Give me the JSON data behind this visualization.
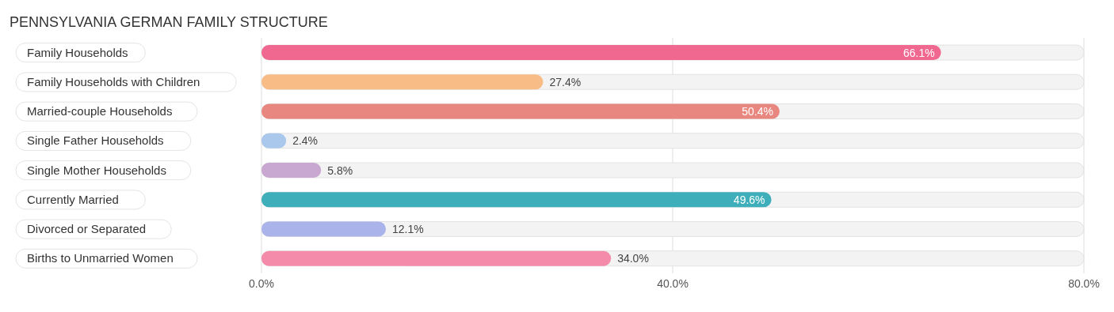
{
  "chart_data": {
    "type": "bar",
    "orientation": "horizontal",
    "title": "PENNSYLVANIA GERMAN FAMILY STRUCTURE",
    "categories": [
      "Family Households",
      "Family Households with Children",
      "Married-couple Households",
      "Single Father Households",
      "Single Mother Households",
      "Currently Married",
      "Divorced or Separated",
      "Births to Unmarried Women"
    ],
    "values": [
      66.1,
      27.4,
      50.4,
      2.4,
      5.8,
      49.6,
      12.1,
      34.0
    ],
    "colors": [
      "#f06890",
      "#f8bd87",
      "#e8877f",
      "#a9c8ec",
      "#c8a8d0",
      "#3eafba",
      "#aab3ea",
      "#f48bab"
    ],
    "value_labels": [
      "66.1%",
      "27.4%",
      "50.4%",
      "2.4%",
      "5.8%",
      "49.6%",
      "12.1%",
      "34.0%"
    ],
    "xlim": [
      0,
      80
    ],
    "xticks": [
      {
        "value": 0,
        "label": "0.0%"
      },
      {
        "value": 40,
        "label": "40.0%"
      },
      {
        "value": 80,
        "label": "80.0%"
      }
    ],
    "grid": "x"
  }
}
